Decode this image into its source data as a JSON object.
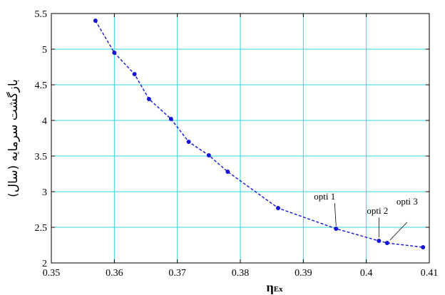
{
  "chart_data": {
    "type": "line",
    "xlabel_main": "η",
    "xlabel_sub": "Ex",
    "ylabel": "بازگشت سرمایه (سال)",
    "xlim": [
      0.35,
      0.41
    ],
    "ylim": [
      2,
      5.5
    ],
    "x_ticks": [
      "0.35",
      "0.36",
      "0.37",
      "0.38",
      "0.39",
      "0.4",
      "0.41"
    ],
    "y_ticks": [
      "2",
      "2.5",
      "3",
      "3.5",
      "4",
      "4.5",
      "5",
      "5.5"
    ],
    "grid": true,
    "colors": {
      "series": "#1515d6",
      "grid": "#33d6d6",
      "axes": "#000000"
    },
    "series": [
      {
        "x": [
          0.357,
          0.36,
          0.3632,
          0.3655,
          0.369,
          0.3718,
          0.375,
          0.378,
          0.386,
          0.3952,
          0.402,
          0.4033,
          0.409
        ],
        "y": [
          5.4,
          4.95,
          4.65,
          4.3,
          4.02,
          3.7,
          3.51,
          3.28,
          2.77,
          2.48,
          2.31,
          2.28,
          2.22
        ]
      }
    ],
    "annotations": [
      {
        "text": "opti 1",
        "x": 0.3952,
        "y": 2.48
      },
      {
        "text": "opti 2",
        "x": 0.402,
        "y": 2.31
      },
      {
        "text": "opti 3",
        "x": 0.4033,
        "y": 2.28
      }
    ]
  }
}
